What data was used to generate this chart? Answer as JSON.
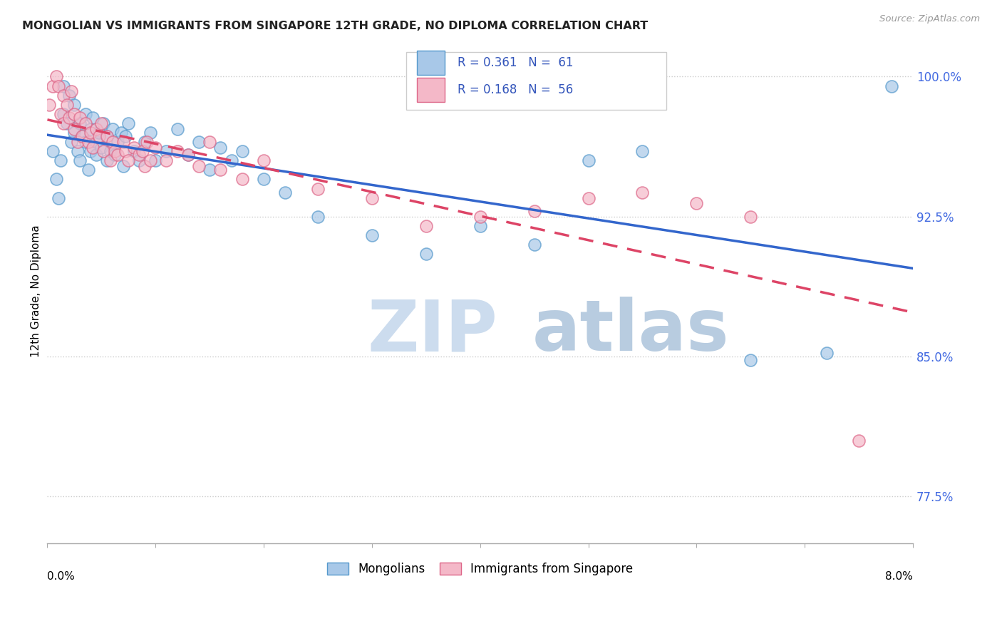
{
  "title": "MONGOLIAN VS IMMIGRANTS FROM SINGAPORE 12TH GRADE, NO DIPLOMA CORRELATION CHART",
  "source": "Source: ZipAtlas.com",
  "ylabel": "12th Grade, No Diploma",
  "xmin": 0.0,
  "xmax": 8.0,
  "ymin": 75.0,
  "ymax": 102.0,
  "mongolian_R": 0.361,
  "mongolian_N": 61,
  "singapore_R": 0.168,
  "singapore_N": 56,
  "mongolian_color": "#a8c8e8",
  "singapore_color": "#f4b8c8",
  "mongolian_edge_color": "#5599cc",
  "singapore_edge_color": "#dd6688",
  "mongolian_line_color": "#3366cc",
  "singapore_line_color": "#dd4466",
  "legend_text_color": "#3355bb",
  "ytick_color": "#4169e1",
  "watermark_zip_color": "#c8d8f0",
  "watermark_atlas_color": "#c8d8f0",
  "background_color": "#ffffff",
  "mongolian_x": [
    0.05,
    0.08,
    0.1,
    0.12,
    0.15,
    0.15,
    0.18,
    0.2,
    0.22,
    0.25,
    0.25,
    0.28,
    0.3,
    0.3,
    0.32,
    0.35,
    0.35,
    0.38,
    0.4,
    0.4,
    0.42,
    0.45,
    0.45,
    0.48,
    0.5,
    0.52,
    0.55,
    0.55,
    0.58,
    0.6,
    0.62,
    0.65,
    0.68,
    0.7,
    0.72,
    0.75,
    0.8,
    0.85,
    0.9,
    0.95,
    1.0,
    1.1,
    1.2,
    1.3,
    1.4,
    1.5,
    1.6,
    1.7,
    1.8,
    2.0,
    2.2,
    2.5,
    3.0,
    3.5,
    4.0,
    4.5,
    5.0,
    5.5,
    6.5,
    7.2,
    7.8
  ],
  "mongolian_y": [
    96.0,
    94.5,
    93.5,
    95.5,
    99.5,
    98.0,
    97.5,
    99.0,
    96.5,
    98.5,
    97.0,
    96.0,
    95.5,
    97.5,
    96.8,
    98.0,
    96.5,
    95.0,
    97.2,
    96.0,
    97.8,
    96.5,
    95.8,
    97.0,
    96.2,
    97.5,
    96.8,
    95.5,
    96.0,
    97.2,
    95.8,
    96.5,
    97.0,
    95.2,
    96.8,
    97.5,
    96.0,
    95.5,
    96.5,
    97.0,
    95.5,
    96.0,
    97.2,
    95.8,
    96.5,
    95.0,
    96.2,
    95.5,
    96.0,
    94.5,
    93.8,
    92.5,
    91.5,
    90.5,
    92.0,
    91.0,
    95.5,
    96.0,
    84.8,
    85.2,
    99.5
  ],
  "singapore_x": [
    0.02,
    0.05,
    0.08,
    0.1,
    0.12,
    0.15,
    0.15,
    0.18,
    0.2,
    0.22,
    0.25,
    0.25,
    0.28,
    0.3,
    0.32,
    0.35,
    0.38,
    0.4,
    0.42,
    0.45,
    0.48,
    0.5,
    0.52,
    0.55,
    0.58,
    0.6,
    0.62,
    0.65,
    0.7,
    0.72,
    0.75,
    0.8,
    0.85,
    0.88,
    0.9,
    0.92,
    0.95,
    1.0,
    1.1,
    1.2,
    1.3,
    1.4,
    1.5,
    1.6,
    1.8,
    2.0,
    2.5,
    3.0,
    3.5,
    4.0,
    4.5,
    5.0,
    5.5,
    6.0,
    6.5,
    7.5
  ],
  "singapore_y": [
    98.5,
    99.5,
    100.0,
    99.5,
    98.0,
    97.5,
    99.0,
    98.5,
    97.8,
    99.2,
    98.0,
    97.2,
    96.5,
    97.8,
    96.8,
    97.5,
    96.5,
    97.0,
    96.2,
    97.2,
    96.8,
    97.5,
    96.0,
    96.8,
    95.5,
    96.5,
    96.0,
    95.8,
    96.5,
    96.0,
    95.5,
    96.2,
    95.8,
    96.0,
    95.2,
    96.5,
    95.5,
    96.2,
    95.5,
    96.0,
    95.8,
    95.2,
    96.5,
    95.0,
    94.5,
    95.5,
    94.0,
    93.5,
    92.0,
    92.5,
    92.8,
    93.5,
    93.8,
    93.2,
    92.5,
    80.5
  ]
}
